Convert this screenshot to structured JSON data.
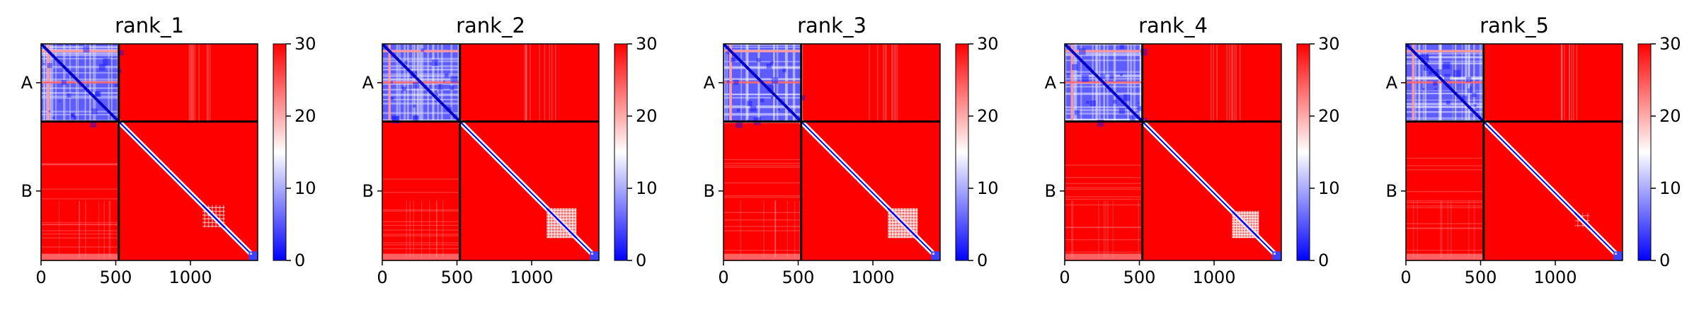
{
  "chart_data": [
    {
      "type": "heatmap",
      "title": "rank_1",
      "chains": [
        {
          "label": "A",
          "start": 0,
          "end": 520
        },
        {
          "label": "B",
          "start": 520,
          "end": 1450
        }
      ],
      "xticks": [
        0,
        500,
        1000
      ],
      "xlim": [
        0,
        1450
      ],
      "ylim": [
        1450,
        0
      ],
      "colorbar": {
        "min": 0,
        "max": 30,
        "ticks": [
          0,
          10,
          20,
          30
        ]
      },
      "colormap": [
        "#0000ff",
        "#ffffff",
        "#ff0000"
      ],
      "chain_boundary_color": "#000000",
      "blocks": {
        "AA": "low",
        "AB": "high",
        "BA": "high",
        "BB": "high_with_low_diagonal"
      },
      "b_domain": {
        "start": 1080,
        "end": 1230,
        "level": "weak"
      },
      "c_terminal_domain": {
        "start": 1390,
        "end": 1450
      }
    },
    {
      "type": "heatmap",
      "title": "rank_2",
      "chains": [
        {
          "label": "A",
          "start": 0,
          "end": 520
        },
        {
          "label": "B",
          "start": 520,
          "end": 1450
        }
      ],
      "xticks": [
        0,
        500,
        1000
      ],
      "xlim": [
        0,
        1450
      ],
      "ylim": [
        1450,
        0
      ],
      "colorbar": {
        "min": 0,
        "max": 30,
        "ticks": [
          0,
          10,
          20,
          30
        ]
      },
      "colormap": [
        "#0000ff",
        "#ffffff",
        "#ff0000"
      ],
      "chain_boundary_color": "#000000",
      "blocks": {
        "AA": "low",
        "AB": "high",
        "BA": "high",
        "BB": "high_with_low_diagonal"
      },
      "b_domain": {
        "start": 1100,
        "end": 1300,
        "level": "strong"
      },
      "c_terminal_domain": {
        "start": 1390,
        "end": 1450
      }
    },
    {
      "type": "heatmap",
      "title": "rank_3",
      "chains": [
        {
          "label": "A",
          "start": 0,
          "end": 520
        },
        {
          "label": "B",
          "start": 520,
          "end": 1450
        }
      ],
      "xticks": [
        0,
        500,
        1000
      ],
      "xlim": [
        0,
        1450
      ],
      "ylim": [
        1450,
        0
      ],
      "colorbar": {
        "min": 0,
        "max": 30,
        "ticks": [
          0,
          10,
          20,
          30
        ]
      },
      "colormap": [
        "#0000ff",
        "#ffffff",
        "#ff0000"
      ],
      "chain_boundary_color": "#000000",
      "blocks": {
        "AA": "low",
        "AB": "high",
        "BA": "high",
        "BB": "high_with_low_diagonal"
      },
      "b_domain": {
        "start": 1100,
        "end": 1300,
        "level": "strong"
      },
      "c_terminal_domain": {
        "start": 1390,
        "end": 1450
      }
    },
    {
      "type": "heatmap",
      "title": "rank_4",
      "chains": [
        {
          "label": "A",
          "start": 0,
          "end": 520
        },
        {
          "label": "B",
          "start": 520,
          "end": 1450
        }
      ],
      "xticks": [
        0,
        500,
        1000
      ],
      "xlim": [
        0,
        1450
      ],
      "ylim": [
        1450,
        0
      ],
      "colorbar": {
        "min": 0,
        "max": 30,
        "ticks": [
          0,
          10,
          20,
          30
        ]
      },
      "colormap": [
        "#0000ff",
        "#ffffff",
        "#ff0000"
      ],
      "chain_boundary_color": "#000000",
      "blocks": {
        "AA": "low",
        "AB": "high",
        "BA": "high",
        "BB": "high_with_low_diagonal"
      },
      "b_domain": {
        "start": 1120,
        "end": 1300,
        "level": "strong"
      },
      "c_terminal_domain": {
        "start": 1390,
        "end": 1450
      }
    },
    {
      "type": "heatmap",
      "title": "rank_5",
      "chains": [
        {
          "label": "A",
          "start": 0,
          "end": 520
        },
        {
          "label": "B",
          "start": 520,
          "end": 1450
        }
      ],
      "xticks": [
        0,
        500,
        1000
      ],
      "xlim": [
        0,
        1450
      ],
      "ylim": [
        1450,
        0
      ],
      "colorbar": {
        "min": 0,
        "max": 30,
        "ticks": [
          0,
          10,
          20,
          30
        ]
      },
      "colormap": [
        "#0000ff",
        "#ffffff",
        "#ff0000"
      ],
      "chain_boundary_color": "#000000",
      "blocks": {
        "AA": "low",
        "AB": "high",
        "BA": "high",
        "BB": "high_with_low_diagonal"
      },
      "b_domain": {
        "start": 1130,
        "end": 1230,
        "level": "faint"
      },
      "c_terminal_domain": {
        "start": 1390,
        "end": 1450
      }
    }
  ]
}
